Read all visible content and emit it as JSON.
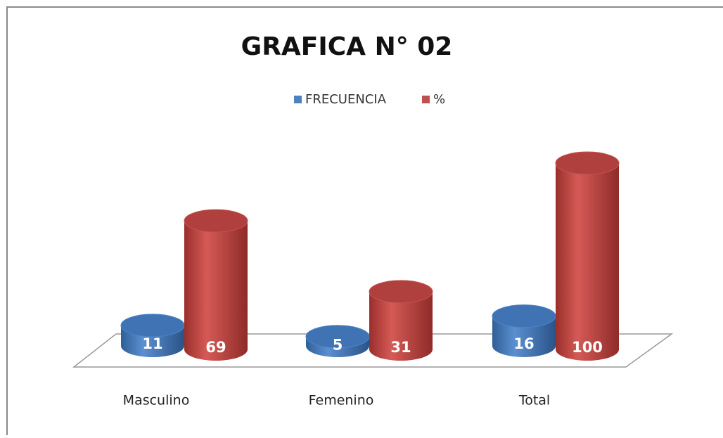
{
  "chart_data": {
    "type": "bar3d",
    "title": "GRAFICA N° 02",
    "categories": [
      "Masculino",
      "Femenino",
      "Total"
    ],
    "series": [
      {
        "name": "FRECUENCIA",
        "color": "#4f81bd",
        "values": [
          11,
          5,
          16
        ]
      },
      {
        "name": "%",
        "color": "#c0504d",
        "values": [
          69,
          31,
          100
        ]
      }
    ]
  }
}
